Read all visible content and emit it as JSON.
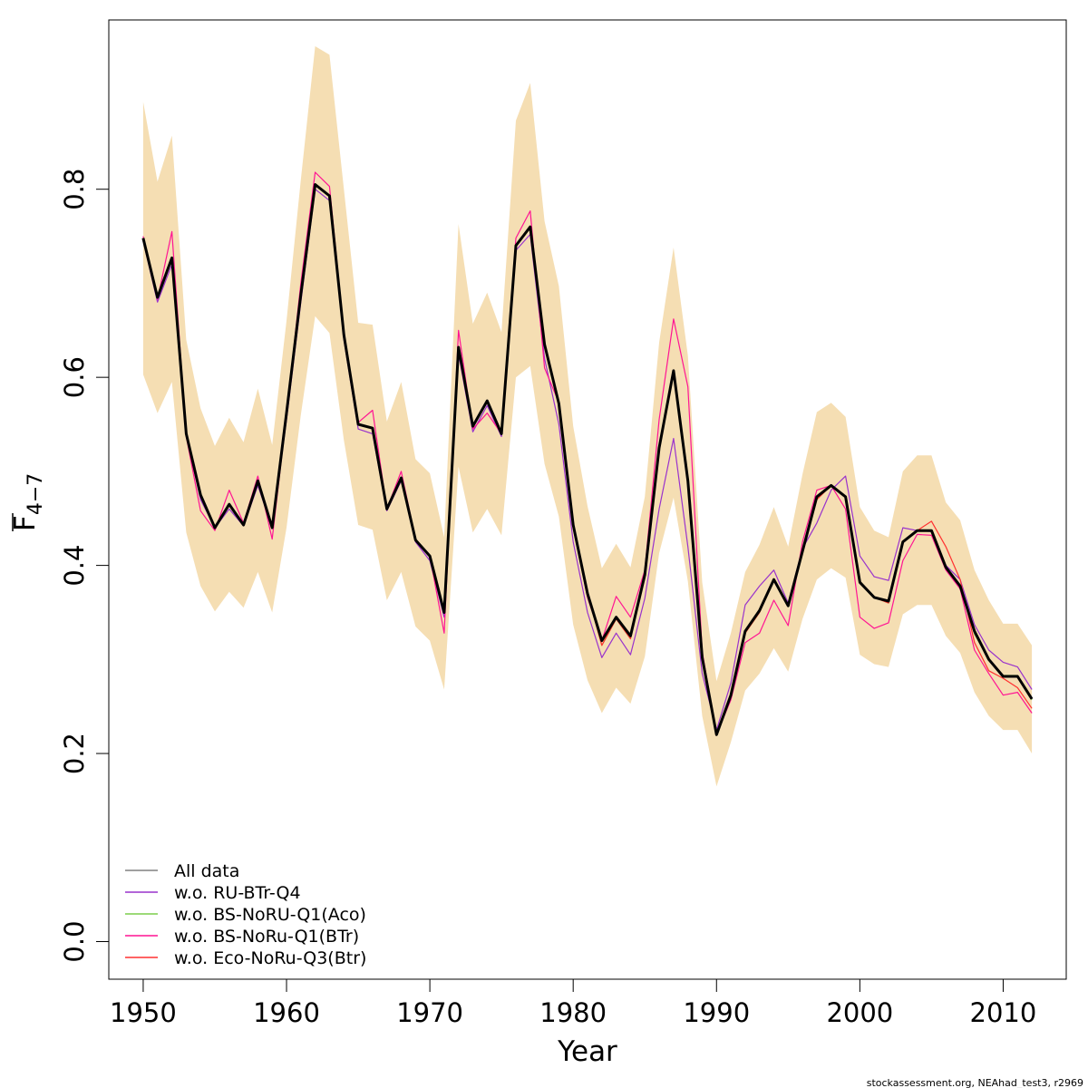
{
  "chart_data": {
    "type": "line",
    "xlabel": "Year",
    "ylabel_main": "F",
    "ylabel_sub": "4−7",
    "xticks": [
      "1950",
      "1960",
      "1970",
      "1980",
      "1990",
      "2000",
      "2010"
    ],
    "yticks": [
      "0.0",
      "0.2",
      "0.4",
      "0.6",
      "0.8"
    ],
    "xlim": [
      1947.6,
      2014.4
    ],
    "ylim": [
      -0.04,
      0.98
    ],
    "grid": false,
    "legend_position": "bottom-left",
    "credit": "stockassessment.org, NEAhad_test3, r2969",
    "band_color": "#f5deb3",
    "x": [
      1950,
      1951,
      1952,
      1953,
      1954,
      1955,
      1956,
      1957,
      1958,
      1959,
      1960,
      1961,
      1962,
      1963,
      1964,
      1965,
      1966,
      1967,
      1968,
      1969,
      1970,
      1971,
      1972,
      1973,
      1974,
      1975,
      1976,
      1977,
      1978,
      1979,
      1980,
      1981,
      1982,
      1983,
      1984,
      1985,
      1986,
      1987,
      1988,
      1989,
      1990,
      1991,
      1992,
      1993,
      1994,
      1995,
      1996,
      1997,
      1998,
      1999,
      2000,
      2001,
      2002,
      2003,
      2004,
      2005,
      2006,
      2007,
      2008,
      2009,
      2010,
      2011,
      2012
    ],
    "band_upper": [
      0.893,
      0.808,
      0.857,
      0.64,
      0.567,
      0.527,
      0.557,
      0.531,
      0.588,
      0.528,
      0.66,
      0.81,
      0.952,
      0.943,
      0.8,
      0.658,
      0.656,
      0.553,
      0.595,
      0.513,
      0.498,
      0.43,
      0.763,
      0.657,
      0.69,
      0.648,
      0.873,
      0.913,
      0.766,
      0.697,
      0.548,
      0.463,
      0.397,
      0.423,
      0.398,
      0.473,
      0.637,
      0.738,
      0.623,
      0.382,
      0.277,
      0.328,
      0.393,
      0.422,
      0.462,
      0.42,
      0.497,
      0.563,
      0.573,
      0.558,
      0.462,
      0.437,
      0.43,
      0.5,
      0.517,
      0.517,
      0.467,
      0.448,
      0.395,
      0.363,
      0.338,
      0.338,
      0.315
    ],
    "band_lower": [
      0.603,
      0.562,
      0.595,
      0.435,
      0.378,
      0.351,
      0.372,
      0.355,
      0.393,
      0.35,
      0.44,
      0.56,
      0.665,
      0.647,
      0.533,
      0.443,
      0.438,
      0.363,
      0.393,
      0.335,
      0.32,
      0.268,
      0.505,
      0.435,
      0.46,
      0.432,
      0.6,
      0.612,
      0.508,
      0.452,
      0.337,
      0.278,
      0.243,
      0.27,
      0.253,
      0.303,
      0.413,
      0.472,
      0.383,
      0.24,
      0.165,
      0.212,
      0.267,
      0.285,
      0.312,
      0.287,
      0.343,
      0.385,
      0.397,
      0.387,
      0.305,
      0.295,
      0.292,
      0.348,
      0.358,
      0.358,
      0.325,
      0.307,
      0.265,
      0.24,
      0.225,
      0.225,
      0.2
    ],
    "series": [
      {
        "name": "w.o. RU-BTr-Q4",
        "color": "#9932cc",
        "width": 1.2,
        "values": [
          0.745,
          0.68,
          0.72,
          0.538,
          0.47,
          0.44,
          0.46,
          0.442,
          0.485,
          0.44,
          0.555,
          0.68,
          0.8,
          0.788,
          0.64,
          0.545,
          0.54,
          0.458,
          0.49,
          0.425,
          0.405,
          0.345,
          0.625,
          0.542,
          0.57,
          0.537,
          0.735,
          0.752,
          0.62,
          0.55,
          0.425,
          0.35,
          0.302,
          0.328,
          0.305,
          0.365,
          0.46,
          0.535,
          0.42,
          0.285,
          0.225,
          0.275,
          0.358,
          0.378,
          0.395,
          0.36,
          0.418,
          0.445,
          0.48,
          0.495,
          0.41,
          0.388,
          0.384,
          0.44,
          0.437,
          0.436,
          0.4,
          0.385,
          0.337,
          0.31,
          0.297,
          0.292,
          0.268
        ]
      },
      {
        "name": "w.o. BS-NoRU-Q1(Aco)",
        "color": "#7ccd4c",
        "width": 1.2,
        "values": [
          0.748,
          0.685,
          0.727,
          0.54,
          0.475,
          0.44,
          0.465,
          0.443,
          0.49,
          0.44,
          0.562,
          0.688,
          0.805,
          0.793,
          0.645,
          0.55,
          0.546,
          0.46,
          0.493,
          0.427,
          0.41,
          0.35,
          0.632,
          0.548,
          0.575,
          0.54,
          0.74,
          0.76,
          0.635,
          0.572,
          0.443,
          0.37,
          0.315,
          0.343,
          0.322,
          0.39,
          0.525,
          0.605,
          0.49,
          0.3,
          0.22,
          0.262,
          0.328,
          0.35,
          0.385,
          0.357,
          0.415,
          0.47,
          0.485,
          0.473,
          0.383,
          0.366,
          0.36,
          0.425,
          0.437,
          0.437,
          0.398,
          0.377,
          0.327,
          0.3,
          0.283,
          0.283,
          0.257
        ]
      },
      {
        "name": "w.o. BS-NoRu-Q1(BTr)",
        "color": "#ff1493",
        "width": 1.2,
        "values": [
          0.75,
          0.683,
          0.755,
          0.537,
          0.458,
          0.437,
          0.48,
          0.445,
          0.495,
          0.428,
          0.56,
          0.7,
          0.818,
          0.803,
          0.648,
          0.552,
          0.565,
          0.46,
          0.5,
          0.428,
          0.41,
          0.328,
          0.65,
          0.545,
          0.562,
          0.54,
          0.748,
          0.777,
          0.61,
          0.573,
          0.44,
          0.366,
          0.32,
          0.367,
          0.345,
          0.395,
          0.555,
          0.662,
          0.59,
          0.308,
          0.22,
          0.257,
          0.318,
          0.328,
          0.363,
          0.336,
          0.425,
          0.48,
          0.485,
          0.46,
          0.345,
          0.333,
          0.339,
          0.405,
          0.433,
          0.432,
          0.395,
          0.375,
          0.31,
          0.285,
          0.262,
          0.265,
          0.243
        ]
      },
      {
        "name": "w.o. Eco-NoRu-Q3(Btr)",
        "color": "#ff3030",
        "width": 1.2,
        "values": [
          0.748,
          0.685,
          0.727,
          0.54,
          0.475,
          0.44,
          0.465,
          0.443,
          0.49,
          0.44,
          0.562,
          0.688,
          0.805,
          0.793,
          0.645,
          0.55,
          0.546,
          0.46,
          0.493,
          0.427,
          0.41,
          0.35,
          0.632,
          0.548,
          0.575,
          0.54,
          0.74,
          0.76,
          0.635,
          0.572,
          0.443,
          0.37,
          0.315,
          0.343,
          0.322,
          0.39,
          0.525,
          0.605,
          0.49,
          0.3,
          0.22,
          0.262,
          0.328,
          0.35,
          0.385,
          0.357,
          0.415,
          0.47,
          0.485,
          0.473,
          0.383,
          0.366,
          0.36,
          0.425,
          0.437,
          0.447,
          0.42,
          0.385,
          0.318,
          0.288,
          0.28,
          0.27,
          0.248
        ]
      },
      {
        "name": "All data",
        "color": "#000000",
        "width": 3,
        "values": [
          0.748,
          0.685,
          0.727,
          0.54,
          0.475,
          0.44,
          0.465,
          0.443,
          0.49,
          0.44,
          0.562,
          0.688,
          0.805,
          0.793,
          0.645,
          0.55,
          0.546,
          0.46,
          0.493,
          0.427,
          0.41,
          0.35,
          0.632,
          0.548,
          0.575,
          0.54,
          0.74,
          0.76,
          0.635,
          0.572,
          0.443,
          0.37,
          0.32,
          0.345,
          0.325,
          0.39,
          0.525,
          0.607,
          0.49,
          0.302,
          0.22,
          0.262,
          0.33,
          0.352,
          0.385,
          0.357,
          0.415,
          0.473,
          0.485,
          0.473,
          0.382,
          0.366,
          0.362,
          0.425,
          0.437,
          0.437,
          0.398,
          0.378,
          0.33,
          0.3,
          0.282,
          0.282,
          0.258
        ]
      }
    ],
    "legend": [
      {
        "label": "All data",
        "color": "#808080"
      },
      {
        "label": "w.o. RU-BTr-Q4",
        "color": "#9932cc"
      },
      {
        "label": "w.o. BS-NoRU-Q1(Aco)",
        "color": "#7ccd4c"
      },
      {
        "label": "w.o. BS-NoRu-Q1(BTr)",
        "color": "#ff1493"
      },
      {
        "label": "w.o. Eco-NoRu-Q3(Btr)",
        "color": "#ff3030"
      }
    ]
  }
}
